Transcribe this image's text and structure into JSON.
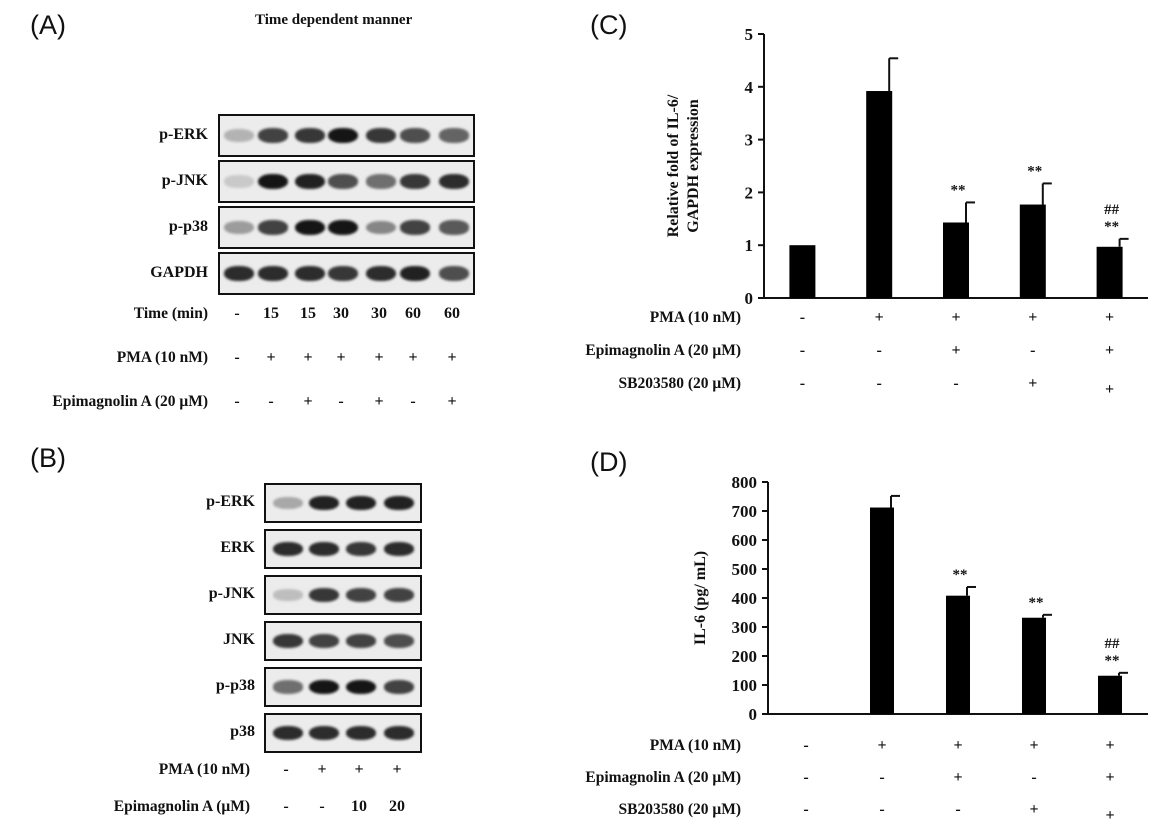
{
  "panel_a": {
    "letter": "(A)",
    "title": "Time dependent manner",
    "blots": [
      {
        "label": "p-ERK",
        "intensity": [
          0.25,
          0.75,
          0.8,
          0.95,
          0.8,
          0.7,
          0.6
        ]
      },
      {
        "label": "p-JNK",
        "intensity": [
          0.15,
          0.95,
          0.9,
          0.7,
          0.55,
          0.8,
          0.85
        ]
      },
      {
        "label": "p-p38",
        "intensity": [
          0.35,
          0.75,
          0.95,
          0.95,
          0.45,
          0.75,
          0.65
        ]
      },
      {
        "label": "GAPDH",
        "intensity": [
          0.85,
          0.85,
          0.85,
          0.8,
          0.85,
          0.9,
          0.7
        ]
      }
    ],
    "rows": [
      {
        "label": "Time (min)",
        "values": [
          "-",
          "15",
          "15",
          "30",
          "30",
          "60",
          "60"
        ]
      },
      {
        "label": "PMA (10 nM)",
        "values": [
          "-",
          "+",
          "+",
          "+",
          "+",
          "+",
          "+"
        ]
      },
      {
        "label": "Epimagnolin A (20 μM)",
        "values": [
          "-",
          "-",
          "+",
          "-",
          "+",
          "-",
          "+"
        ]
      }
    ]
  },
  "panel_b": {
    "letter": "(B)",
    "blots": [
      {
        "label": "p-ERK",
        "intensity": [
          0.3,
          0.9,
          0.9,
          0.9
        ]
      },
      {
        "label": "ERK",
        "intensity": [
          0.85,
          0.85,
          0.8,
          0.85
        ]
      },
      {
        "label": "p-JNK",
        "intensity": [
          0.2,
          0.8,
          0.75,
          0.75
        ]
      },
      {
        "label": "JNK",
        "intensity": [
          0.8,
          0.75,
          0.75,
          0.7
        ]
      },
      {
        "label": "p-p38",
        "intensity": [
          0.55,
          0.95,
          0.95,
          0.75
        ]
      },
      {
        "label": "p38",
        "intensity": [
          0.85,
          0.85,
          0.85,
          0.85
        ]
      }
    ],
    "rows": [
      {
        "label": "PMA (10 nM)",
        "values": [
          "-",
          "+",
          "+",
          "+"
        ]
      },
      {
        "label": "Epimagnolin A (μM)",
        "values": [
          "-",
          "-",
          "10",
          "20"
        ]
      }
    ]
  },
  "chart_data": [
    {
      "type": "bar",
      "panel": "(C)",
      "ylabel": "Relative fold of IL-6/ GAPDH expression",
      "ylim": [
        0,
        5
      ],
      "yticks": [
        "0",
        "1",
        "2",
        "3",
        "4",
        "5"
      ],
      "values": [
        1.0,
        3.92,
        1.43,
        1.77,
        0.97
      ],
      "errors": [
        0.0,
        0.62,
        0.38,
        0.4,
        0.15
      ],
      "annotations": [
        [],
        [],
        [
          "**"
        ],
        [
          "**"
        ],
        [
          "**",
          "##"
        ]
      ],
      "color": "#000000",
      "rows": [
        {
          "label": "PMA (10 nM)",
          "values": [
            "-",
            "+",
            "+",
            "+",
            "+"
          ]
        },
        {
          "label": "Epimagnolin A (20 μM)",
          "values": [
            "-",
            "-",
            "+",
            "-",
            "+"
          ]
        },
        {
          "label": "SB203580 (20 μM)",
          "values": [
            "-",
            "-",
            "-",
            "+",
            "+"
          ]
        }
      ]
    },
    {
      "type": "bar",
      "panel": "(D)",
      "ylabel": "IL-6 (pg/ mL)",
      "ylim": [
        0,
        800
      ],
      "yticks": [
        "0",
        "100",
        "200",
        "300",
        "400",
        "500",
        "600",
        "700",
        "800"
      ],
      "values": [
        0,
        712,
        408,
        332,
        132
      ],
      "errors": [
        0,
        40,
        30,
        10,
        10
      ],
      "annotations": [
        [],
        [],
        [
          "**"
        ],
        [
          "**"
        ],
        [
          "**",
          "##"
        ]
      ],
      "color": "#000000",
      "rows": [
        {
          "label": "PMA (10 nM)",
          "values": [
            "-",
            "+",
            "+",
            "+",
            "+"
          ]
        },
        {
          "label": "Epimagnolin A (20 μM)",
          "values": [
            "-",
            "-",
            "+",
            "-",
            "+"
          ]
        },
        {
          "label": "SB203580 (20 μM)",
          "values": [
            "-",
            "-",
            "-",
            "+",
            "+"
          ]
        }
      ]
    }
  ]
}
